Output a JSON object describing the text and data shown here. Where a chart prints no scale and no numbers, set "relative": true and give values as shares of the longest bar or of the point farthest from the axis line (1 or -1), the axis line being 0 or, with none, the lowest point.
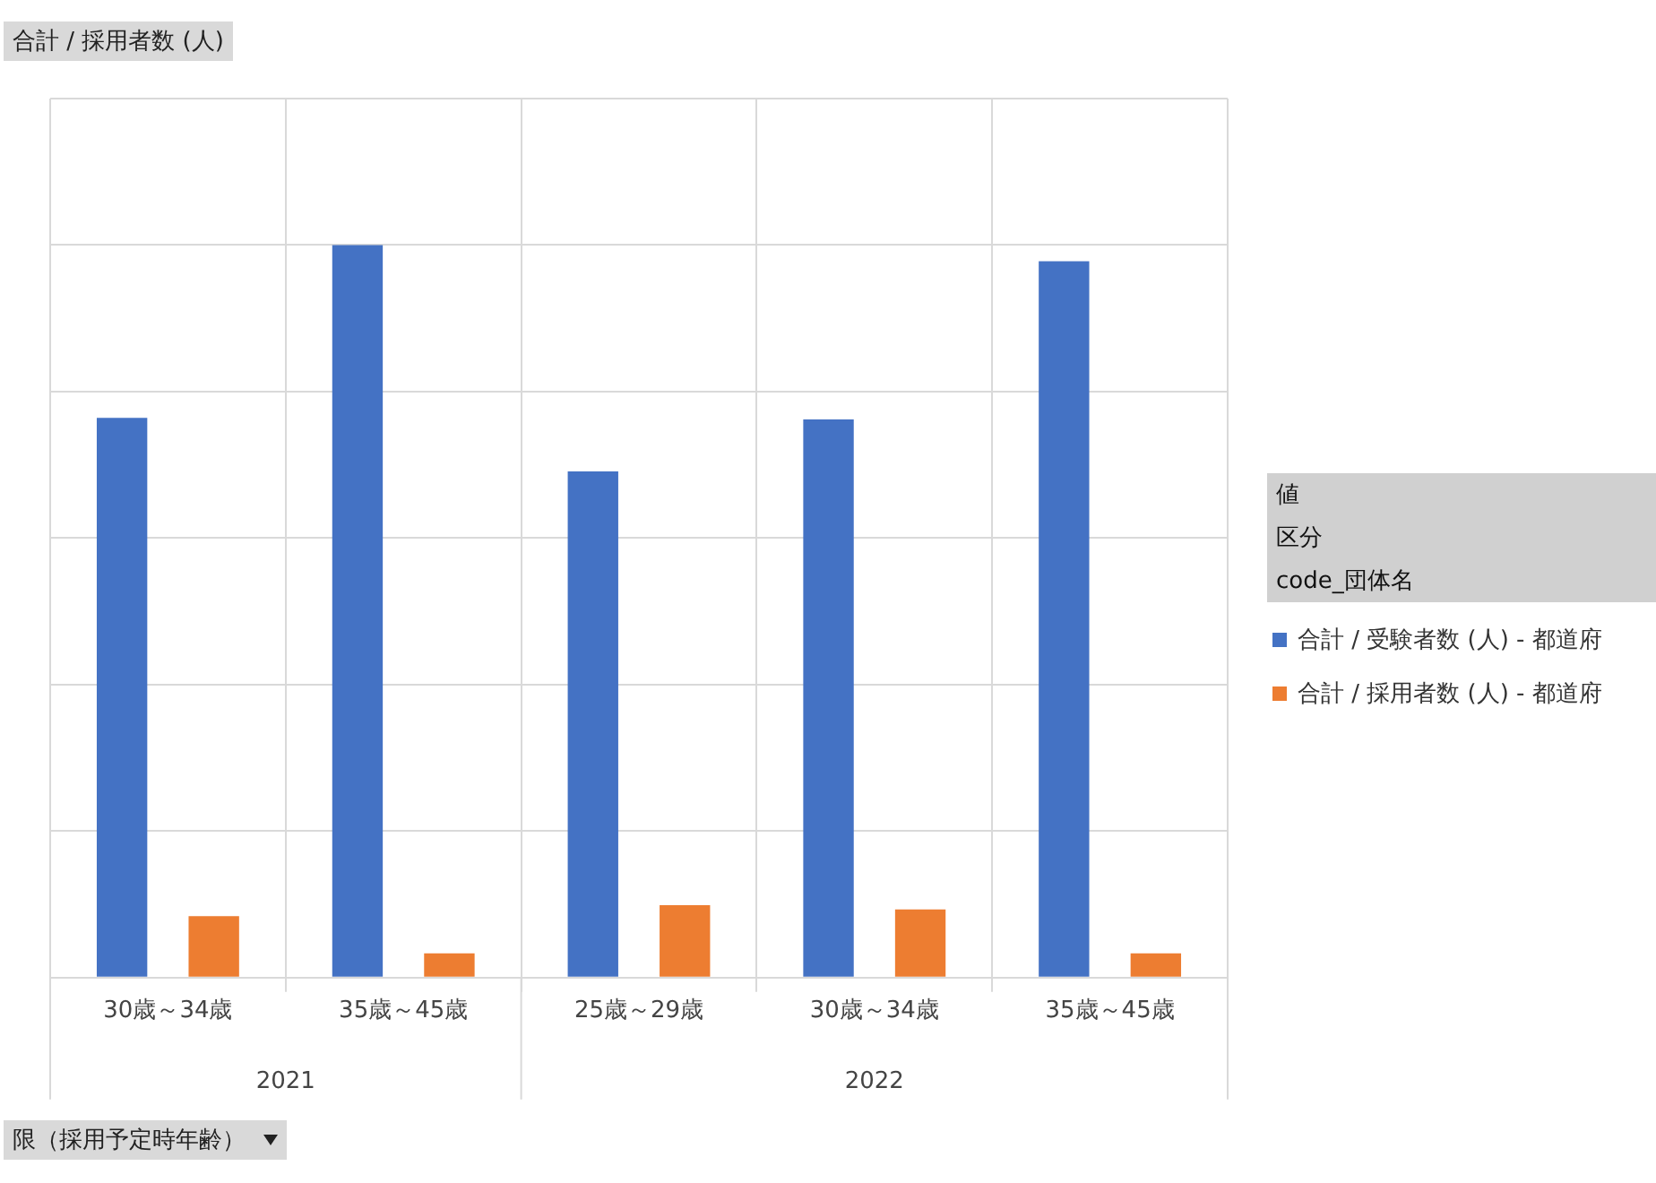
{
  "chart_data": {
    "type": "bar",
    "relative": true,
    "categories": [
      "30歳～34歳",
      "35歳～45歳",
      "25歳～29歳",
      "30歳～34歳",
      "35歳～45歳"
    ],
    "series": [
      {
        "name": "合計 / 受験者数 (人) - 都道府",
        "color": "#4472c4",
        "values": [
          0.764,
          1,
          0.691,
          0.762,
          0.978
        ]
      },
      {
        "name": "合計 / 採用者数 (人) - 都道府",
        "color": "#ed7d31",
        "values": [
          0.084,
          0.033,
          0.099,
          0.093,
          0.033
        ]
      }
    ],
    "legend_title": "code_団体名",
    "annotations": [
      "合計 / 採用者数 (人)",
      "値",
      "区分",
      "限（採用予定時年齢）",
      "2021",
      "2022"
    ],
    "grid": true,
    "legend": "right"
  }
}
